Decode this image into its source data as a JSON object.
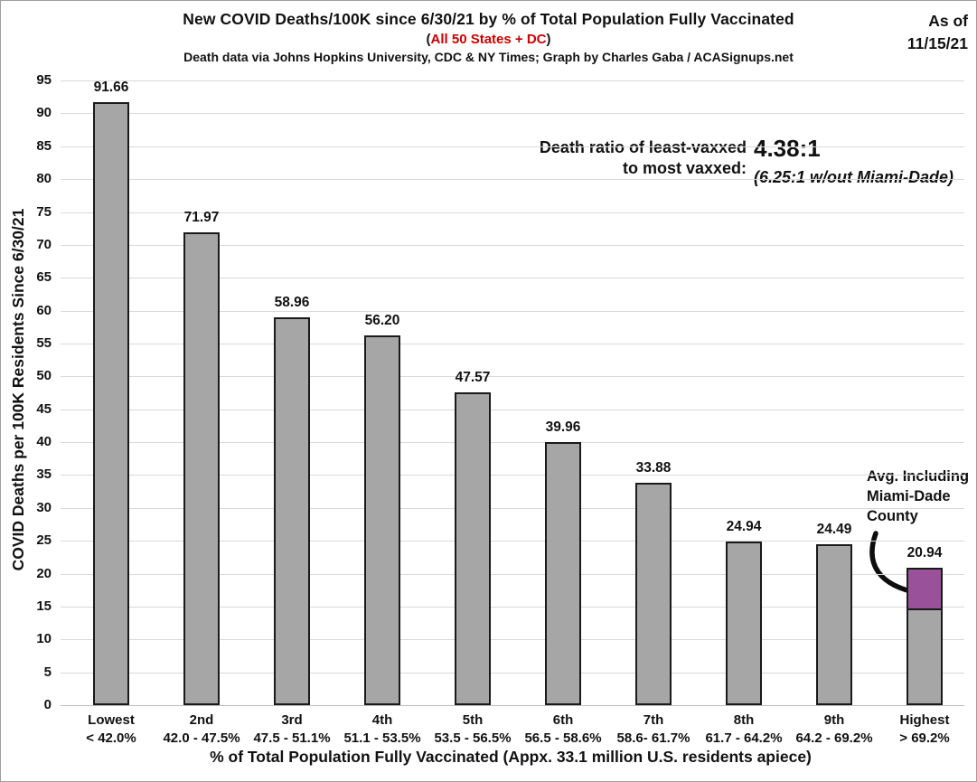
{
  "header": {
    "title": "New COVID Deaths/100K since 6/30/21 by % of Total Population Fully Vaccinated",
    "subtitle_prefix": "(",
    "subtitle_red": "All 50 States + DC",
    "subtitle_suffix": ")",
    "source_line": "Death data via Johns Hopkins University, CDC & NY Times; Graph by Charles Gaba / ACASignups.net",
    "as_of_line1": "As of",
    "as_of_line2": "11/15/21"
  },
  "colors": {
    "accent_red": "#cc0000",
    "text": "#111111",
    "grid": "#d9d9d9",
    "axis": "#bdbdbd"
  },
  "annotations": {
    "ratio_label_line1": "Death ratio of least-vaxxed",
    "ratio_label_line2": "to most vaxxed:",
    "ratio_value": "4.38:1",
    "ratio_note": "(6.25:1 w/out Miami-Dade)",
    "avg_note": [
      "Avg. Including",
      "Miami-Dade",
      "County"
    ]
  },
  "chart_data": {
    "type": "bar",
    "title": "New COVID Deaths/100K since 6/30/21 by % of Total Population Fully Vaccinated",
    "xlabel": "% of Total Population Fully Vaccinated (Appx. 33.1 million U.S. residents apiece)",
    "ylabel": "COVID Deaths per 100K Residents Since 6/30/21",
    "ylim": [
      0,
      95
    ],
    "ytick_step": 5,
    "grid": true,
    "legend": "none",
    "categories": [
      "Lowest",
      "2nd",
      "3rd",
      "4th",
      "5th",
      "6th",
      "7th",
      "8th",
      "9th",
      "Highest"
    ],
    "category_ranges": [
      "< 42.0%",
      "42.0 - 47.5%",
      "47.5 - 51.1%",
      "51.1 - 53.5%",
      "53.5 - 56.5%",
      "56.5 - 58.6%",
      "58.6- 61.7%",
      "61.7 - 64.2%",
      "64.2 - 69.2%",
      "> 69.2%"
    ],
    "values": [
      91.66,
      71.97,
      58.96,
      56.2,
      47.57,
      39.96,
      33.88,
      24.94,
      24.49,
      20.94
    ],
    "value_labels": [
      "91.66",
      "71.97",
      "58.96",
      "56.20",
      "47.57",
      "39.96",
      "33.88",
      "24.94",
      "24.49",
      "20.94"
    ],
    "bar_color": "#a6a6a6",
    "bar_border_color": "#1a1a1a",
    "highlight": {
      "bar_index": 9,
      "color": "#995199",
      "base_value": 14.67,
      "top_value": 20.94,
      "label": "Avg. Including Miami-Dade County"
    }
  }
}
